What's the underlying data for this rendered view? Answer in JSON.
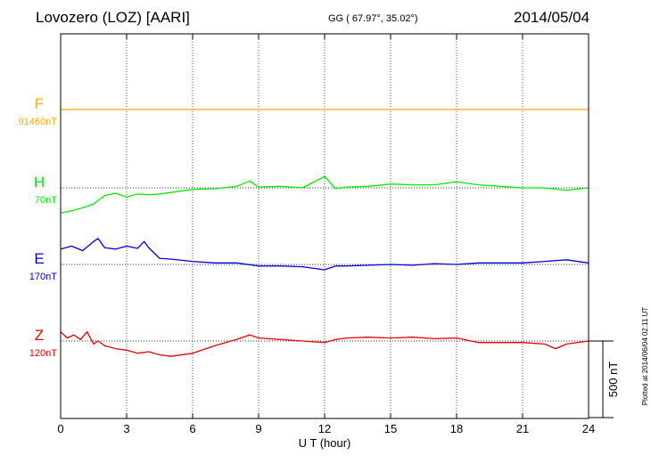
{
  "header": {
    "station": "Lovozero (LOZ)  [AARI]",
    "coords": "GG ( 67.97°,  35.02°)",
    "date": "2014/05/04"
  },
  "plotted_note": "Plotted at 2014/06/04 02:11 UT",
  "chart_data": {
    "type": "line",
    "title": "Lovozero (LOZ)  [AARI]",
    "xlabel": "U T (hour)",
    "xlim": [
      0,
      24
    ],
    "xticks": [
      0,
      3,
      6,
      9,
      12,
      15,
      18,
      21,
      24
    ],
    "xtick_labels": [
      "0",
      "3",
      "6",
      "9",
      "12",
      "15",
      "18",
      "21",
      "24"
    ],
    "grid": true,
    "scale_bar": {
      "label": "500 nT",
      "value_nT": 500
    },
    "series": [
      {
        "name": "F",
        "baseline": "91460nT",
        "color": "#ffaa00",
        "x": [
          0,
          24
        ],
        "y": [
          0,
          0
        ]
      },
      {
        "name": "H",
        "baseline": "70nT",
        "color": "#00ee00",
        "x": [
          0,
          0.5,
          1,
          1.5,
          2,
          2.5,
          3,
          3.5,
          4,
          4.5,
          5,
          6,
          7,
          8,
          8.6,
          9,
          10,
          11,
          12,
          12.5,
          13,
          14,
          15,
          16,
          17,
          18,
          19,
          20,
          21,
          22,
          23,
          24
        ],
        "y": [
          -165,
          -150,
          -130,
          -105,
          -50,
          -35,
          -60,
          -40,
          -45,
          -40,
          -30,
          -10,
          -5,
          10,
          45,
          5,
          10,
          0,
          75,
          -5,
          5,
          10,
          25,
          20,
          20,
          40,
          20,
          10,
          0,
          0,
          -15,
          0
        ]
      },
      {
        "name": "E",
        "baseline": "170nT",
        "color": "#0000dd",
        "x": [
          0,
          0.5,
          1,
          1.5,
          1.7,
          2,
          2.5,
          3,
          3.5,
          3.8,
          4,
          4.5,
          5,
          6,
          7,
          8,
          9,
          10,
          11,
          12,
          12.5,
          13,
          14,
          15,
          16,
          17,
          18,
          19,
          20,
          21,
          22,
          23,
          24
        ],
        "y": [
          100,
          120,
          90,
          150,
          170,
          110,
          100,
          120,
          105,
          150,
          110,
          40,
          35,
          20,
          10,
          10,
          -10,
          -10,
          -15,
          -35,
          -10,
          -10,
          -5,
          0,
          -5,
          5,
          0,
          10,
          10,
          10,
          20,
          30,
          10
        ]
      },
      {
        "name": "Z",
        "baseline": "120nT",
        "color": "#ee0000",
        "x": [
          0,
          0.3,
          0.6,
          0.9,
          1.2,
          1.5,
          1.7,
          2,
          2.5,
          3,
          3.5,
          4,
          4.5,
          5,
          6,
          7,
          8,
          8.6,
          9,
          10,
          11,
          12,
          12.5,
          13,
          14,
          15,
          16,
          17,
          18,
          19,
          20,
          21,
          22,
          22.5,
          23,
          24
        ],
        "y": [
          60,
          20,
          40,
          10,
          60,
          -20,
          0,
          -30,
          -50,
          -60,
          -80,
          -70,
          -90,
          -100,
          -80,
          -30,
          10,
          40,
          20,
          10,
          0,
          -10,
          10,
          20,
          25,
          20,
          25,
          15,
          20,
          -10,
          -10,
          -10,
          -20,
          -50,
          -20,
          0
        ]
      }
    ]
  }
}
